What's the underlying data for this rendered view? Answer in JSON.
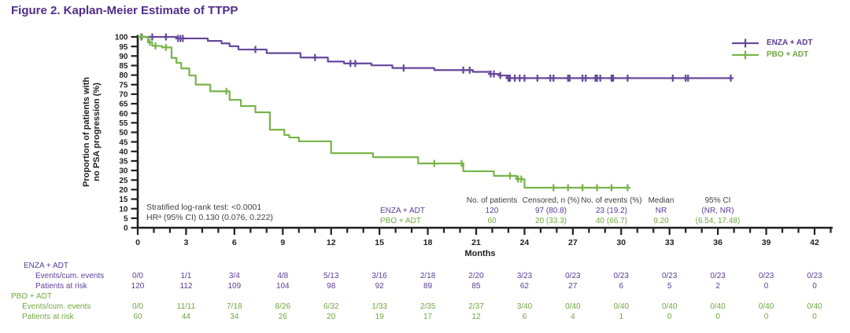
{
  "title": "Figure 2. Kaplan-Meier Estimate of TTPP",
  "colors": {
    "title": "#512d8a",
    "enza_line": "#66489c",
    "pbo_line": "#78b44a",
    "enza_text": "#5b3d99",
    "pbo_text": "#6fa83d",
    "axis": "#231f20",
    "stats_text": "#404041"
  },
  "legend": {
    "items": [
      {
        "label": "ENZA + ADT"
      },
      {
        "label": "PBO + ADT"
      }
    ]
  },
  "stats": {
    "line1": "Stratified log-rank test: <0.0001",
    "line2": "HRᵃ (95% CI) 0.130 (0.076, 0.222)"
  },
  "summary_table": {
    "headers": [
      "No. of patients",
      "Censored, n (%)",
      "No. of events (%)",
      "Median",
      "95% CI"
    ],
    "rows": [
      {
        "label": "ENZA + ADT",
        "color_key": "enza_text",
        "values": [
          "120",
          "97 (80.8)",
          "23 (19.2)",
          "NR",
          "(NR, NR)"
        ]
      },
      {
        "label": "PBO + ADT",
        "color_key": "pbo_text",
        "values": [
          "60",
          "20 (33.3)",
          "40 (66.7)",
          "9.20",
          "(6.54, 17.48)"
        ]
      }
    ]
  },
  "risk_table": {
    "months": [
      0,
      3,
      6,
      9,
      12,
      15,
      18,
      21,
      24,
      27,
      30,
      33,
      36,
      39,
      42
    ],
    "groups": [
      {
        "label": "ENZA + ADT",
        "color_key": "enza_text",
        "rows": [
          {
            "label": "Events/cum. events",
            "values": [
              "0/0",
              "1/1",
              "3/4",
              "4/8",
              "5/13",
              "3/16",
              "2/18",
              "2/20",
              "3/23",
              "0/23",
              "0/23",
              "0/23",
              "0/23",
              "0/23",
              "0/23"
            ]
          },
          {
            "label": "Patients at risk",
            "values": [
              "120",
              "112",
              "109",
              "104",
              "98",
              "92",
              "89",
              "85",
              "62",
              "27",
              "6",
              "5",
              "2",
              "0",
              "0"
            ]
          }
        ]
      },
      {
        "label": "PBO + ADT",
        "color_key": "pbo_text",
        "rows": [
          {
            "label": "Events/cum. events",
            "values": [
              "0/0",
              "11/11",
              "7/18",
              "8/26",
              "6/32",
              "1/33",
              "2/35",
              "2/37",
              "3/40",
              "0/40",
              "0/40",
              "0/40",
              "0/40",
              "0/40",
              "0/40"
            ]
          },
          {
            "label": "Patients at risk",
            "values": [
              "60",
              "44",
              "34",
              "26",
              "20",
              "19",
              "17",
              "12",
              "6",
              "4",
              "1",
              "0",
              "0",
              "0",
              "0"
            ]
          }
        ]
      }
    ]
  },
  "chart_data": {
    "type": "line",
    "subtype": "kaplan-meier-step",
    "title": "Figure 2. Kaplan-Meier Estimate of TTPP",
    "xlabel": "Months",
    "ylabel": "Proportion of patients with\nno PSA progression (%)",
    "xlim": [
      0,
      43
    ],
    "ylim": [
      0,
      100
    ],
    "grid": false,
    "legend_position": "top-right",
    "xticks": [
      0,
      3,
      6,
      9,
      12,
      15,
      18,
      21,
      24,
      27,
      30,
      33,
      36,
      39,
      42
    ],
    "yticks": [
      0,
      5,
      10,
      15,
      20,
      25,
      30,
      35,
      40,
      45,
      50,
      55,
      60,
      65,
      70,
      75,
      80,
      85,
      90,
      95,
      100
    ],
    "series": [
      {
        "name": "ENZA + ADT",
        "color": "#66489c",
        "steps": [
          [
            0,
            100
          ],
          [
            2.4,
            99.2
          ],
          [
            4.35,
            97.9
          ],
          [
            5.2,
            96.6
          ],
          [
            5.7,
            95.1
          ],
          [
            6.25,
            93.4
          ],
          [
            8.0,
            91.5
          ],
          [
            10.1,
            89.2
          ],
          [
            11.8,
            87.1
          ],
          [
            12.8,
            86.1
          ],
          [
            14.5,
            85.1
          ],
          [
            15.8,
            83.7
          ],
          [
            18.4,
            82.6
          ],
          [
            20.8,
            81.7
          ],
          [
            21.9,
            80.6
          ],
          [
            22.4,
            79.8
          ],
          [
            22.9,
            78.4
          ]
        ],
        "end_month": 36.8,
        "censor_months": [
          0.25,
          0.9,
          1.75,
          2.5,
          2.65,
          2.8,
          7.3,
          11.0,
          13.2,
          13.5,
          16.5,
          20.2,
          20.6,
          21.9,
          22.1,
          22.5,
          23.0,
          23.1,
          23.4,
          23.7,
          24.0,
          24.8,
          25.6,
          25.8,
          26.7,
          26.8,
          27.6,
          27.8,
          28.4,
          28.5,
          28.7,
          29.4,
          29.5,
          30.4,
          33.2,
          34.0,
          34.15,
          36.8
        ]
      },
      {
        "name": "PBO + ADT",
        "color": "#78b44a",
        "steps": [
          [
            0,
            100
          ],
          [
            0.63,
            97.2
          ],
          [
            0.9,
            95.3
          ],
          [
            1.5,
            94.5
          ],
          [
            2.1,
            89.0
          ],
          [
            2.4,
            86.4
          ],
          [
            2.7,
            83.5
          ],
          [
            3.2,
            79.8
          ],
          [
            3.6,
            75.0
          ],
          [
            4.5,
            71.5
          ],
          [
            5.7,
            67.0
          ],
          [
            6.4,
            63.8
          ],
          [
            7.3,
            60.5
          ],
          [
            8.2,
            51.4
          ],
          [
            9.1,
            48.6
          ],
          [
            9.4,
            47.3
          ],
          [
            10.0,
            45.3
          ],
          [
            12.0,
            39.1
          ],
          [
            14.6,
            37.0
          ],
          [
            17.4,
            33.7
          ],
          [
            20.2,
            29.6
          ],
          [
            22.1,
            27.2
          ],
          [
            23.5,
            25.5
          ],
          [
            24.0,
            21.0
          ]
        ],
        "end_month": 30.4,
        "censor_months": [
          0.2,
          0.75,
          1.1,
          1.75,
          5.5,
          18.4,
          20.1,
          23.1,
          23.6,
          23.8,
          25.8,
          26.7,
          27.6,
          28.5,
          29.4,
          30.4
        ]
      }
    ]
  }
}
